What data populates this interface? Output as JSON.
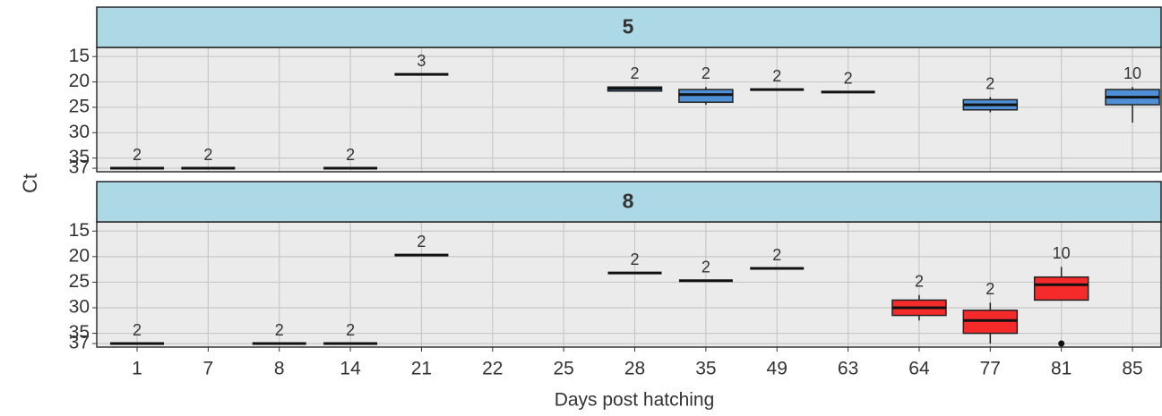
{
  "chart_data": {
    "type": "box",
    "x_label": "Days post hatching",
    "y_label": "Ct",
    "categories": [
      "1",
      "7",
      "8",
      "14",
      "21",
      "22",
      "25",
      "28",
      "35",
      "49",
      "63",
      "64",
      "77",
      "81",
      "85"
    ],
    "ylim": [
      37.7,
      13.2
    ],
    "yticks": [
      15,
      20,
      25,
      30,
      35,
      37
    ],
    "grid": true,
    "facets": [
      {
        "title": "5",
        "boxes": [
          {
            "median": 37,
            "count": 2
          },
          {
            "median": 37,
            "count": 2
          },
          null,
          {
            "median": 37,
            "count": 2
          },
          {
            "median": 18.5,
            "count": 3
          },
          null,
          null,
          {
            "min": 21,
            "q1": 21,
            "median": 21.3,
            "q3": 21.8,
            "max": 21.8,
            "count": 2,
            "color": "#4f8fd6"
          },
          {
            "min": 21,
            "q1": 21.5,
            "median": 22.5,
            "q3": 24,
            "max": 24.5,
            "count": 2,
            "color": "#4f8fd6"
          },
          {
            "median": 21.5,
            "count": 2
          },
          {
            "median": 22,
            "count": 2
          },
          null,
          {
            "min": 23,
            "q1": 23.5,
            "median": 24.5,
            "q3": 25.5,
            "max": 26,
            "count": 2,
            "color": "#4f8fd6"
          },
          null,
          {
            "min": 21,
            "q1": 21.5,
            "median": 23,
            "q3": 24.5,
            "max": 28,
            "count": 10,
            "color": "#4f8fd6"
          }
        ]
      },
      {
        "title": "8",
        "boxes": [
          {
            "median": 37,
            "count": 2
          },
          null,
          {
            "median": 37,
            "count": 2
          },
          {
            "median": 37,
            "count": 2
          },
          {
            "median": 19.7,
            "count": 2
          },
          null,
          null,
          {
            "median": 23.2,
            "count": 2
          },
          {
            "median": 24.7,
            "count": 2
          },
          {
            "median": 22.3,
            "count": 2
          },
          null,
          {
            "min": 27.5,
            "q1": 28.5,
            "median": 30,
            "q3": 31.5,
            "max": 32.5,
            "count": 2,
            "color": "#f52a2a"
          },
          {
            "min": 29,
            "q1": 30.5,
            "median": 32.5,
            "q3": 35,
            "max": 37,
            "count": 2,
            "color": "#f52a2a"
          },
          {
            "min": 22,
            "q1": 24,
            "median": 25.5,
            "q3": 28.5,
            "max": 28.5,
            "outliers": [
              37
            ],
            "count": 10,
            "color": "#f52a2a"
          },
          null
        ]
      }
    ]
  }
}
